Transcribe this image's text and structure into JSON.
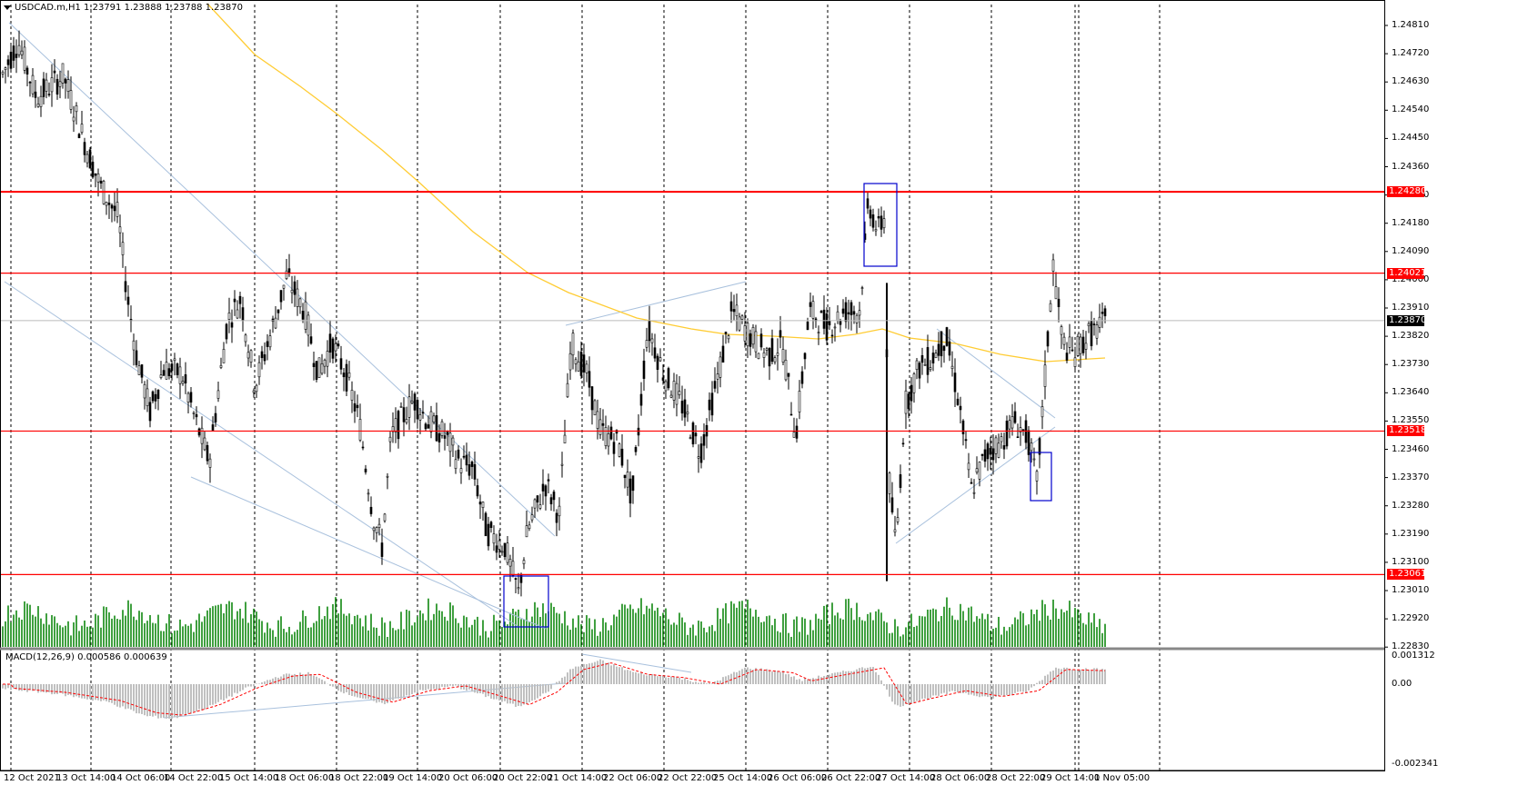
{
  "header": {
    "symbol_line": "USDCAD.m,H1  1.23791 1.23888 1.23788 1.23870"
  },
  "macd_header": {
    "label": "MACD(12,26,9) 0.000586 0.000639"
  },
  "price_axis": {
    "labels": [
      "1.24810",
      "1.24720",
      "1.24630",
      "1.24540",
      "1.24450",
      "1.24360",
      "1.24270",
      "1.24180",
      "1.24090",
      "1.24000",
      "1.23910",
      "1.23820",
      "1.23730",
      "1.23640",
      "1.23550",
      "1.23460",
      "1.23370",
      "1.23280",
      "1.23190",
      "1.23100",
      "1.23010",
      "1.22920",
      "1.22830"
    ]
  },
  "price_tags": [
    {
      "value": "1.24280",
      "color": "#ff0000"
    },
    {
      "value": "1.24021",
      "color": "#ff0000"
    },
    {
      "value": "1.23870",
      "color": "#000000"
    },
    {
      "value": "1.23518",
      "color": "#ff0000"
    },
    {
      "value": "1.23061",
      "color": "#ff0000"
    }
  ],
  "macd_axis": {
    "labels": [
      "0.001312",
      "0.00",
      "-0.002341"
    ]
  },
  "time_axis": {
    "labels": [
      "12 Oct 2021",
      "13 Oct 14:00",
      "14 Oct 06:00",
      "14 Oct 22:00",
      "15 Oct 14:00",
      "18 Oct 06:00",
      "18 Oct 22:00",
      "19 Oct 14:00",
      "20 Oct 06:00",
      "20 Oct 22:00",
      "21 Oct 14:00",
      "22 Oct 06:00",
      "22 Oct 22:00",
      "25 Oct 14:00",
      "26 Oct 06:00",
      "26 Oct 22:00",
      "27 Oct 14:00",
      "28 Oct 06:00",
      "28 Oct 22:00",
      "29 Oct 14:00",
      "1 Nov 05:00"
    ]
  },
  "colors": {
    "support_resistance": "#ff0000",
    "moving_average": "#ffcc33",
    "trendline": "#a9c1dd",
    "highlight_box": "#0000cd",
    "volume": "#008000",
    "macd_histogram": "#c0c0c0",
    "macd_signal": "#ff0000",
    "candles": "#000000"
  }
}
